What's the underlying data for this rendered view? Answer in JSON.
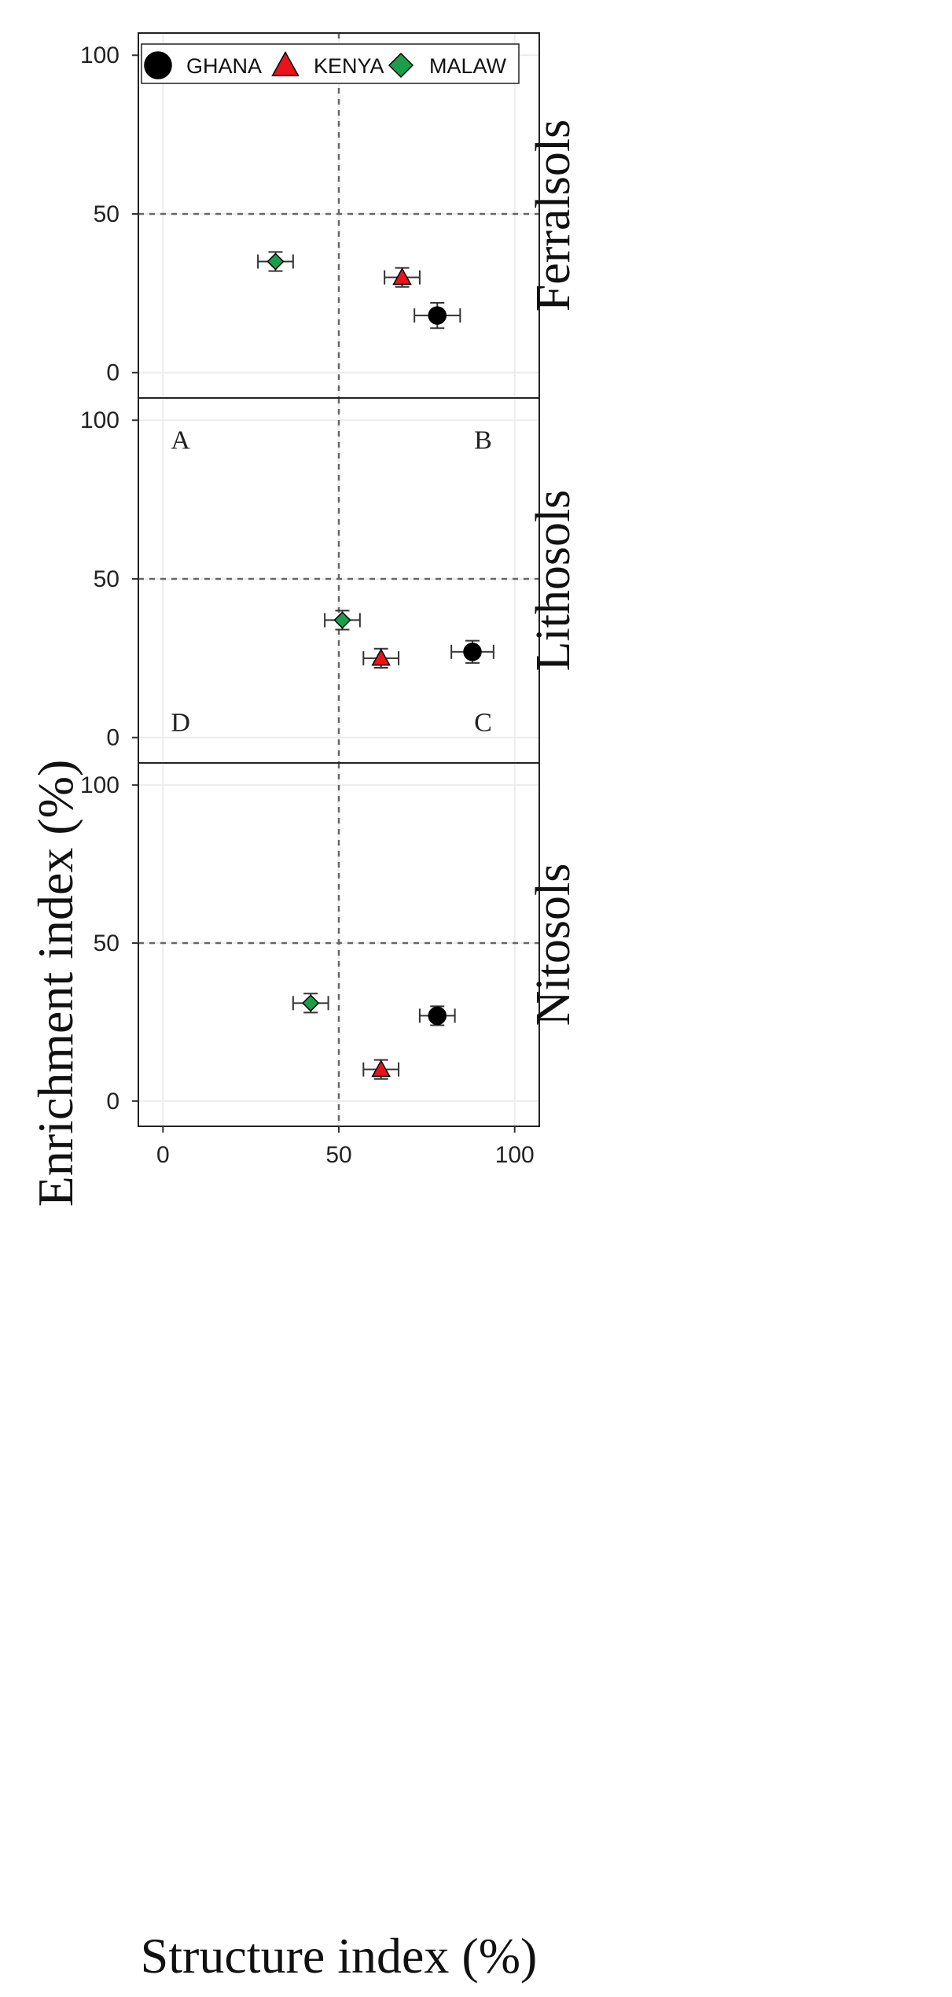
{
  "chart_data": {
    "type": "scatter",
    "xlabel": "Structure index (%)",
    "ylabel": "Enrichment index (%)",
    "xlim": [
      -7,
      107
    ],
    "ylim": [
      -8,
      107
    ],
    "x_ticks": [
      "0",
      "50",
      "100"
    ],
    "y_ticks": [
      "0",
      "50",
      "100"
    ],
    "reference_lines": {
      "x": 50,
      "y": 50,
      "style": "dashed"
    },
    "grid": true,
    "legend": {
      "placement": "top",
      "entries": [
        {
          "name": "GHANA",
          "marker": "circle",
          "color": "#000000"
        },
        {
          "name": "KENYA",
          "marker": "triangle",
          "color": "#e8141a"
        },
        {
          "name": "MALAW",
          "marker": "diamond",
          "color": "#1a9e4a"
        }
      ]
    },
    "quadrant_labels": [
      {
        "text": "A",
        "x": 5,
        "y": 94
      },
      {
        "text": "B",
        "x": 91,
        "y": 94
      },
      {
        "text": "D",
        "x": 5,
        "y": 5
      },
      {
        "text": "C",
        "x": 91,
        "y": 5
      }
    ],
    "panels": [
      {
        "label": "Ferralsols",
        "points": [
          {
            "series": "GHANA",
            "x": 78,
            "y": 18,
            "xerr": 6.5,
            "yerr": 4
          },
          {
            "series": "KENYA",
            "x": 68,
            "y": 30,
            "xerr": 5,
            "yerr": 3
          },
          {
            "series": "MALAW",
            "x": 32,
            "y": 35,
            "xerr": 5,
            "yerr": 3
          }
        ]
      },
      {
        "label": "Lithosols",
        "points": [
          {
            "series": "GHANA",
            "x": 88,
            "y": 27,
            "xerr": 6,
            "yerr": 3.5
          },
          {
            "series": "KENYA",
            "x": 62,
            "y": 25,
            "xerr": 5,
            "yerr": 3
          },
          {
            "series": "MALAW",
            "x": 51,
            "y": 37,
            "xerr": 5,
            "yerr": 3
          }
        ]
      },
      {
        "label": "Nitosols",
        "points": [
          {
            "series": "GHANA",
            "x": 78,
            "y": 27,
            "xerr": 5,
            "yerr": 3
          },
          {
            "series": "KENYA",
            "x": 62,
            "y": 10,
            "xerr": 5,
            "yerr": 3
          },
          {
            "series": "MALAW",
            "x": 42,
            "y": 31,
            "xerr": 5,
            "yerr": 3
          }
        ]
      }
    ]
  }
}
